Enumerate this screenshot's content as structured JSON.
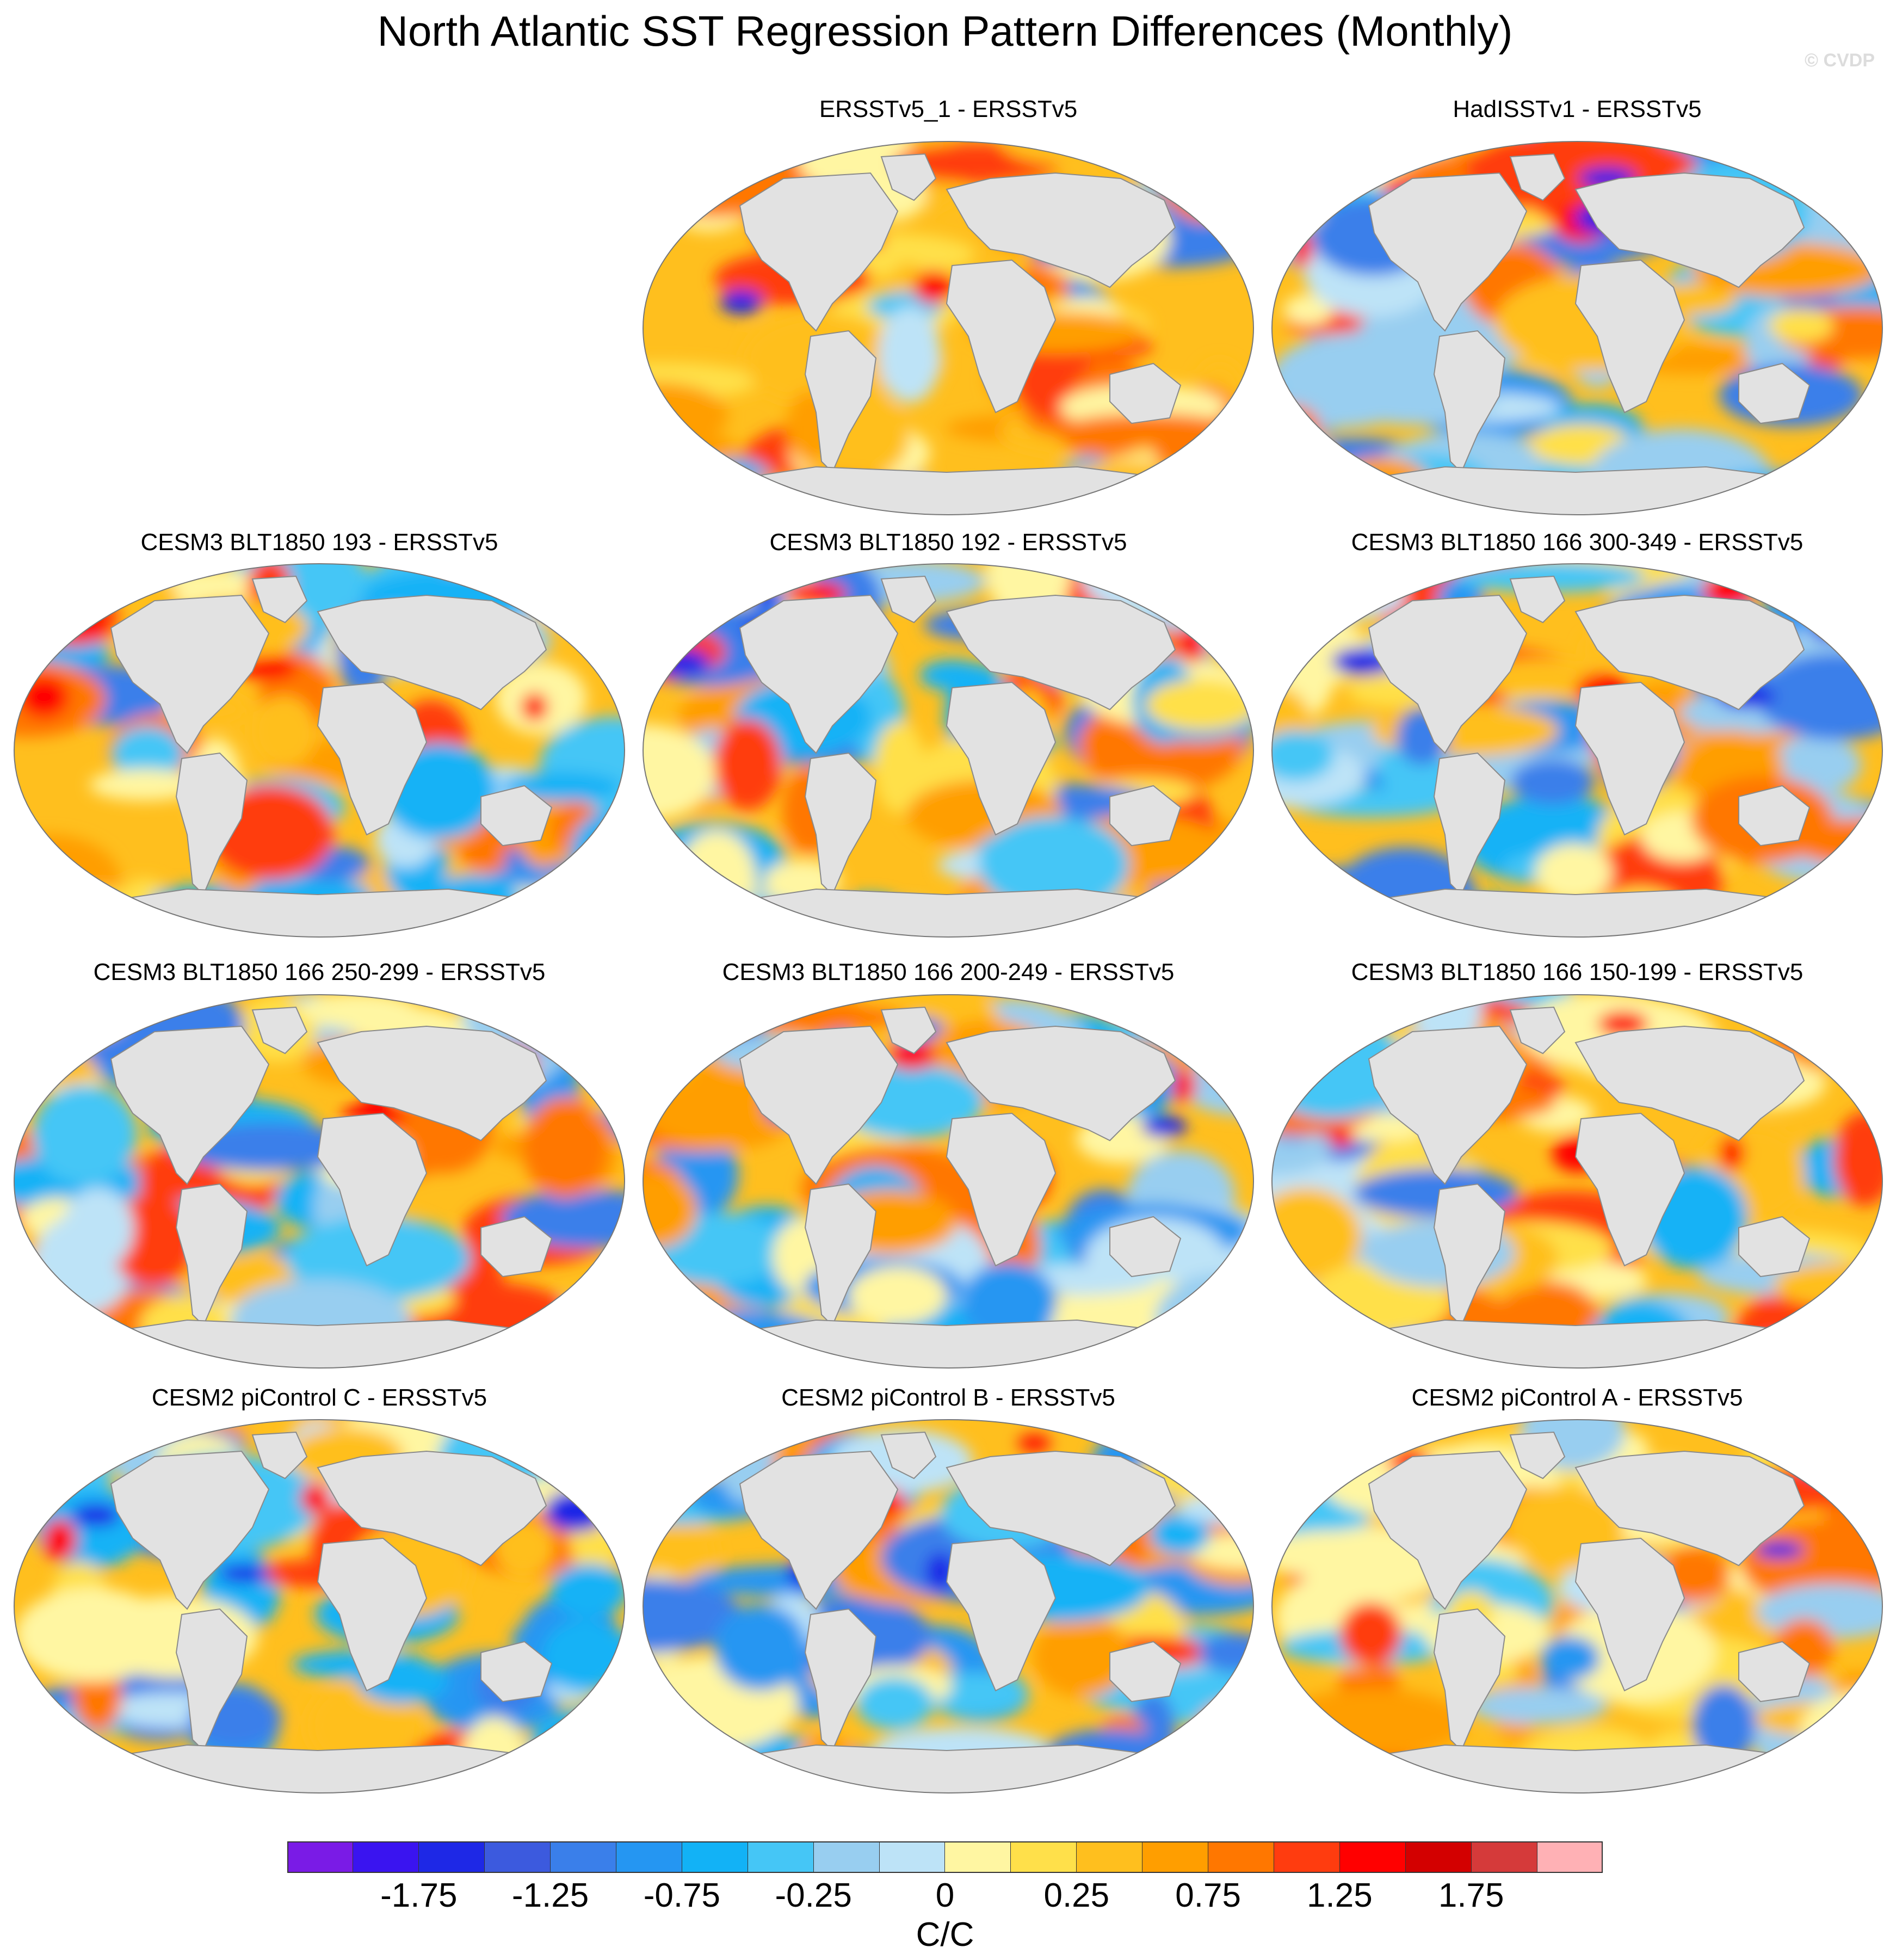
{
  "title": "North Atlantic SST Regression Pattern Differences (Monthly)",
  "watermark": "© CVDP",
  "panels": [
    {
      "title": "ERSSTv5_1 - ERSSTv5"
    },
    {
      "title": "HadISSTv1 - ERSSTv5"
    },
    {
      "title": "CESM3 BLT1850 193 - ERSSTv5"
    },
    {
      "title": "CESM3 BLT1850 192 - ERSSTv5"
    },
    {
      "title": "CESM3 BLT1850 166 300-349 - ERSSTv5"
    },
    {
      "title": "CESM3 BLT1850 166 250-299 - ERSSTv5"
    },
    {
      "title": "CESM3 BLT1850 166 200-249 - ERSSTv5"
    },
    {
      "title": "CESM3 BLT1850 166 150-199 - ERSSTv5"
    },
    {
      "title": "CESM2 piControl C - ERSSTv5"
    },
    {
      "title": "CESM2 piControl B - ERSSTv5"
    },
    {
      "title": "CESM2 piControl A - ERSSTv5"
    }
  ],
  "colorbar": {
    "labels": [
      "-1.75",
      "-1.25",
      "-0.75",
      "-0.25",
      "0",
      "0.25",
      "0.75",
      "1.25",
      "1.75"
    ],
    "units": "C/C",
    "colors": [
      "#7a1be6",
      "#3a14f0",
      "#1e28e6",
      "#3c5ade",
      "#3a7fea",
      "#2596f2",
      "#12b2f6",
      "#45c6f6",
      "#98cef0",
      "#bde3f7",
      "#fff6a2",
      "#ffe04a",
      "#ffbf1e",
      "#ff9e00",
      "#ff7700",
      "#ff3c0f",
      "#ff0000",
      "#d30000",
      "#d53a3a",
      "#ffb1b5"
    ]
  }
}
